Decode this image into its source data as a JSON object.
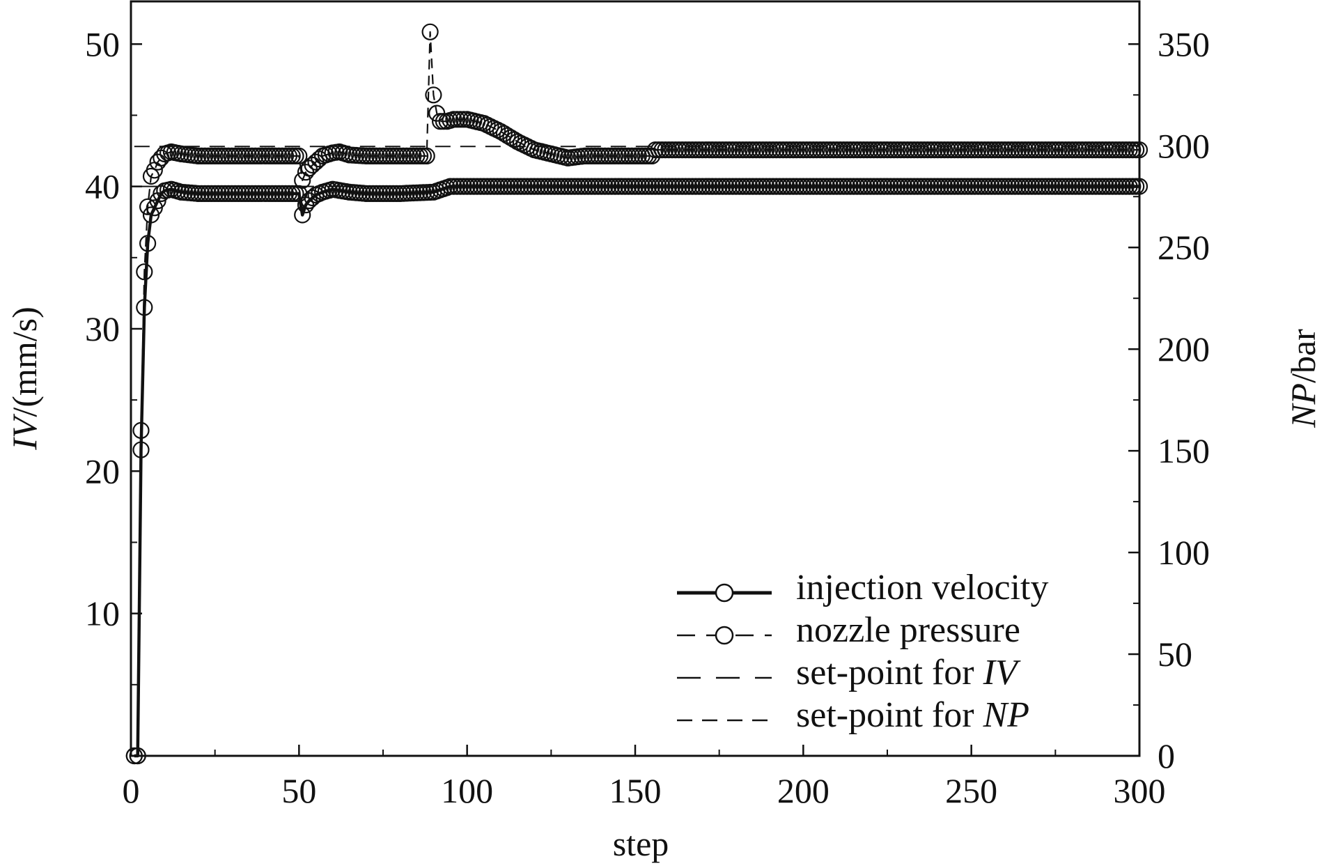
{
  "chart_data": {
    "type": "line",
    "title": "",
    "xlabel": "step",
    "ylabel_left": {
      "italic": "IV",
      "rest": "/(mm/s)"
    },
    "ylabel_right": {
      "italic": "NP",
      "rest": "/bar"
    },
    "xlim": [
      0,
      300
    ],
    "ylim_left": [
      0,
      53
    ],
    "ylim_right": [
      0,
      371
    ],
    "x_ticks": [
      0,
      50,
      100,
      150,
      200,
      250,
      300
    ],
    "y_left_ticks": [
      10,
      20,
      30,
      40,
      50
    ],
    "y_right_ticks": [
      0,
      50,
      100,
      150,
      200,
      250,
      300,
      350
    ],
    "grid": false,
    "legend_position": "bottom-right",
    "legend": [
      {
        "key": "iv",
        "text": "injection velocity"
      },
      {
        "key": "np",
        "text": "nozzle pressure"
      },
      {
        "key": "sp_iv",
        "text_plain": "set-point for ",
        "text_italic": "IV"
      },
      {
        "key": "sp_np",
        "text_plain": "set-point for ",
        "text_italic": "NP"
      }
    ],
    "setpoints": {
      "iv": 40,
      "np": 300
    },
    "series": [
      {
        "name": "injection velocity",
        "axis": "left",
        "style": "solid",
        "marker": "circle",
        "x": [
          1,
          2,
          3,
          4,
          5,
          6,
          7,
          8,
          9,
          10,
          12,
          15,
          20,
          30,
          40,
          50,
          51,
          52,
          53,
          55,
          57,
          60,
          65,
          70,
          80,
          90,
          95,
          100,
          150,
          200,
          250,
          300
        ],
        "y": [
          0,
          0,
          21.5,
          31.5,
          36,
          38,
          38.5,
          39,
          39.5,
          39.7,
          39.8,
          39.6,
          39.5,
          39.5,
          39.5,
          39.5,
          38,
          38.7,
          39,
          39.4,
          39.6,
          39.8,
          39.6,
          39.5,
          39.5,
          39.6,
          40,
          40,
          40,
          40,
          40,
          40
        ]
      },
      {
        "name": "nozzle pressure",
        "axis": "right",
        "style": "dashed",
        "marker": "circle",
        "x": [
          1,
          2,
          3,
          4,
          5,
          6,
          7,
          8,
          9,
          10,
          12,
          15,
          20,
          30,
          40,
          50,
          51,
          52,
          53,
          55,
          57,
          60,
          62,
          65,
          70,
          80,
          88,
          89,
          90,
          91,
          92,
          94,
          96,
          100,
          105,
          110,
          115,
          120,
          125,
          130,
          135,
          140,
          150,
          155,
          156,
          160,
          200,
          250,
          300
        ],
        "y": [
          0,
          0,
          160,
          238,
          270,
          285,
          288,
          292,
          294,
          296,
          297,
          296,
          295,
          295,
          295,
          295,
          283,
          287,
          289,
          292,
          295,
          296.5,
          297,
          295.5,
          295,
          295,
          295,
          356,
          325,
          316,
          312,
          312,
          313,
          313,
          311,
          307,
          302,
          298,
          296,
          294,
          295,
          295,
          295,
          295,
          298,
          298,
          298,
          298,
          298
        ]
      }
    ]
  }
}
